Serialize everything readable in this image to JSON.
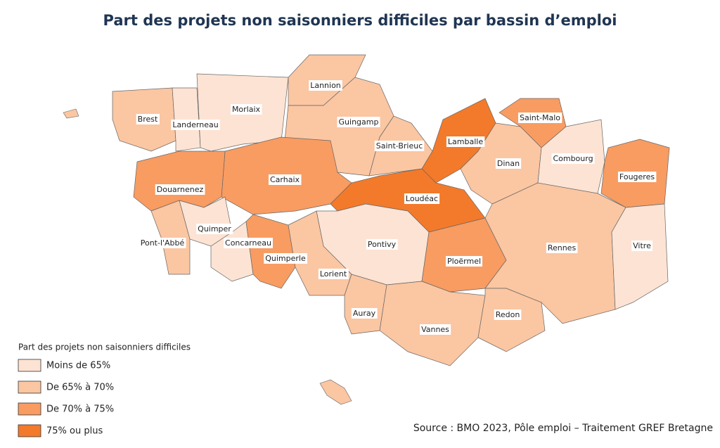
{
  "title": "Part des projets non saisonniers difficiles par bassin d’emploi",
  "legend": {
    "title": "Part des projets non saisonniers difficiles",
    "classes": [
      {
        "label": "Moins de 65%",
        "color": "#fde3d3"
      },
      {
        "label": "De 65% à 70%",
        "color": "#fbc6a2"
      },
      {
        "label": "De 70% à 75%",
        "color": "#f89c62"
      },
      {
        "label": "75% ou plus",
        "color": "#f37a2a"
      }
    ]
  },
  "regions": [
    {
      "name": "Brest",
      "class": "De 65% à 70%"
    },
    {
      "name": "Landerneau",
      "class": "Moins de 65%"
    },
    {
      "name": "Morlaix",
      "class": "Moins de 65%"
    },
    {
      "name": "Lannion",
      "class": "De 65% à 70%"
    },
    {
      "name": "Guingamp",
      "class": "De 65% à 70%"
    },
    {
      "name": "Saint-Brieuc",
      "class": "De 65% à 70%"
    },
    {
      "name": "Lamballe",
      "class": "75% ou plus"
    },
    {
      "name": "Saint-Malo",
      "class": "De 70% à 75%"
    },
    {
      "name": "Dinan",
      "class": "De 65% à 70%"
    },
    {
      "name": "Combourg",
      "class": "Moins de 65%"
    },
    {
      "name": "Fougeres",
      "class": "De 70% à 75%"
    },
    {
      "name": "Carhaix",
      "class": "De 70% à 75%"
    },
    {
      "name": "Douarnenez",
      "class": "De 70% à 75%"
    },
    {
      "name": "Quimper",
      "class": "Moins de 65%"
    },
    {
      "name": "Pont-l'Abbé",
      "class": "De 65% à 70%"
    },
    {
      "name": "Concarneau",
      "class": "Moins de 65%"
    },
    {
      "name": "Quimperle",
      "class": "De 70% à 75%"
    },
    {
      "name": "Loudéac",
      "class": "75% ou plus"
    },
    {
      "name": "Pontivy",
      "class": "Moins de 65%"
    },
    {
      "name": "Lorient",
      "class": "De 65% à 70%"
    },
    {
      "name": "Ploërmel",
      "class": "De 70% à 75%"
    },
    {
      "name": "Rennes",
      "class": "De 65% à 70%"
    },
    {
      "name": "Vitre",
      "class": "Moins de 65%"
    },
    {
      "name": "Auray",
      "class": "De 65% à 70%"
    },
    {
      "name": "Vannes",
      "class": "De 65% à 70%"
    },
    {
      "name": "Redon",
      "class": "De 65% à 70%"
    }
  ],
  "source": "Source : BMO 2023, Pôle emploi – Traitement GREF Bretagne"
}
